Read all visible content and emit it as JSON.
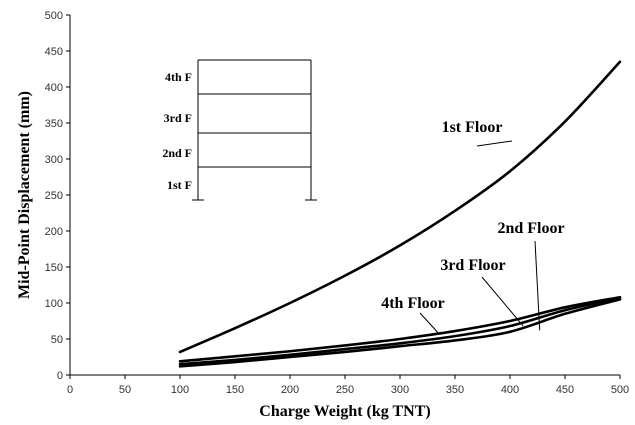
{
  "chart_data": {
    "type": "line",
    "xlabel": "Charge Weight (kg TNT)",
    "ylabel": "Mid-Point Displacement (mm)",
    "xlim": [
      0,
      500
    ],
    "ylim": [
      0,
      500
    ],
    "xticks": [
      0,
      50,
      100,
      150,
      200,
      250,
      300,
      350,
      400,
      450,
      500
    ],
    "yticks": [
      0,
      50,
      100,
      150,
      200,
      250,
      300,
      350,
      400,
      450,
      500
    ],
    "grid": false,
    "x": [
      100,
      150,
      200,
      250,
      300,
      350,
      400,
      450,
      500
    ],
    "series": [
      {
        "name": "1st Floor",
        "values": [
          32,
          65,
          100,
          138,
          180,
          228,
          283,
          352,
          435
        ]
      },
      {
        "name": "2nd Floor",
        "values": [
          12,
          18,
          25,
          32,
          40,
          48,
          60,
          85,
          105
        ]
      },
      {
        "name": "3rd Floor",
        "values": [
          15,
          21,
          28,
          36,
          44,
          54,
          68,
          90,
          107
        ]
      },
      {
        "name": "4th Floor",
        "values": [
          19,
          26,
          33,
          41,
          50,
          61,
          75,
          94,
          108
        ]
      }
    ],
    "annotations": [
      {
        "text": "1st Floor",
        "series": "1st Floor",
        "point": [
          370,
          318
        ]
      },
      {
        "text": "2nd Floor",
        "series": "2nd Floor",
        "point": [
          427,
          62
        ]
      },
      {
        "text": "3rd Floor",
        "series": "3rd Floor",
        "point": [
          412,
          68
        ]
      },
      {
        "text": "4th Floor",
        "series": "4th Floor",
        "point": [
          335,
          58
        ]
      }
    ],
    "inset": {
      "floor_labels": [
        "4th F",
        "3rd F",
        "2nd F",
        "1st F"
      ]
    }
  }
}
